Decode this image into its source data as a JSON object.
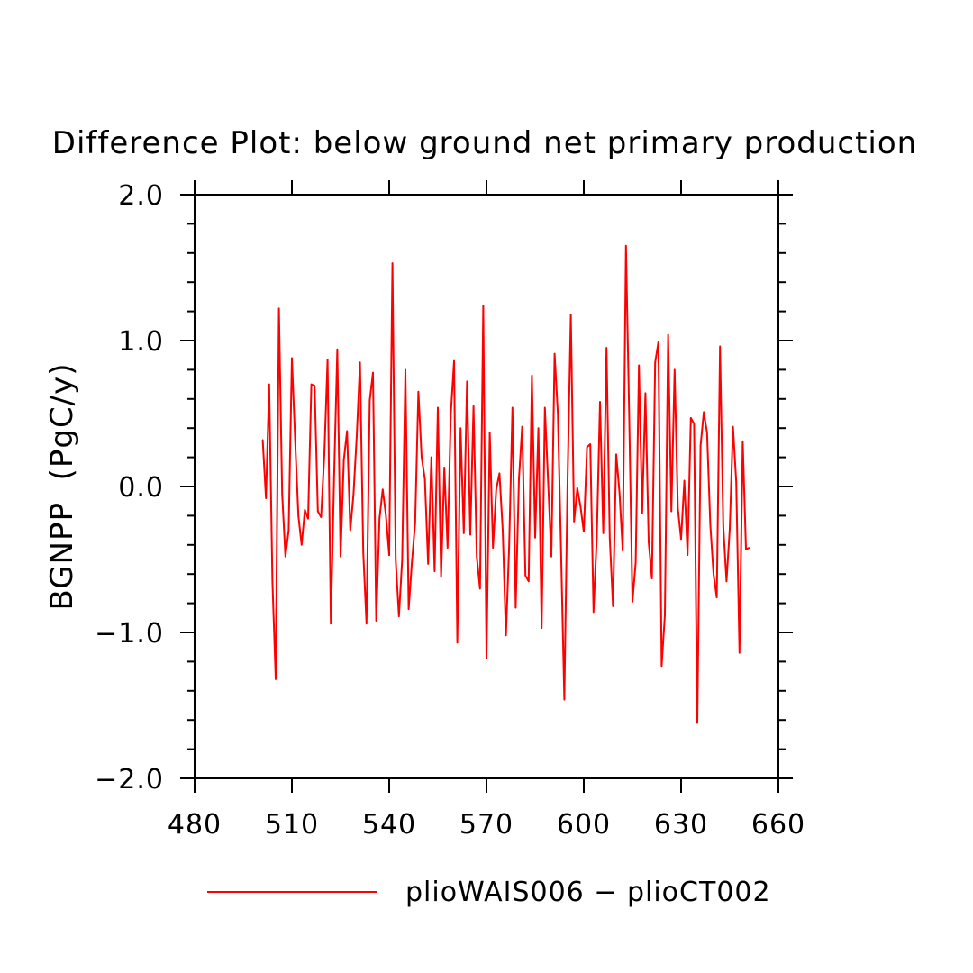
{
  "chart_data": {
    "type": "line",
    "title": "Difference Plot: below ground net primary production",
    "xlabel": "",
    "ylabel": "BGNPP  (PgC/y)",
    "xlim": [
      480,
      660
    ],
    "ylim": [
      -2.0,
      2.0
    ],
    "x_ticks": [
      480,
      510,
      540,
      570,
      600,
      630,
      660
    ],
    "x_tick_labels": [
      "480",
      "510",
      "540",
      "570",
      "600",
      "630",
      "660"
    ],
    "y_ticks": [
      -2.0,
      -1.0,
      0.0,
      1.0,
      2.0
    ],
    "y_tick_labels": [
      "−2.0",
      "−1.0",
      "0.0",
      "1.0",
      "2.0"
    ],
    "grid": false,
    "legend": "bottom",
    "series": [
      {
        "name": "plioWAIS006 − plioCT002",
        "color": "#ff0000",
        "x_start": 501,
        "x_step": 1,
        "values": [
          0.32,
          -0.08,
          0.7,
          -0.65,
          -1.32,
          1.22,
          -0.05,
          -0.48,
          -0.3,
          0.88,
          0.32,
          -0.2,
          -0.4,
          -0.16,
          -0.22,
          0.7,
          0.69,
          -0.17,
          -0.21,
          0.22,
          0.87,
          -0.94,
          0.06,
          0.94,
          -0.48,
          0.18,
          0.38,
          -0.3,
          -0.05,
          0.35,
          0.85,
          -0.45,
          -0.94,
          0.59,
          0.78,
          -0.92,
          -0.22,
          -0.02,
          -0.2,
          -0.47,
          1.53,
          -0.5,
          -0.89,
          -0.5,
          0.8,
          -0.84,
          -0.52,
          -0.25,
          0.65,
          0.2,
          0.05,
          -0.53,
          0.2,
          -0.58,
          0.54,
          -0.62,
          0.13,
          -0.42,
          0.5,
          0.86,
          -1.07,
          0.4,
          -0.32,
          0.72,
          -0.33,
          0.55,
          -0.48,
          -0.7,
          1.24,
          -1.18,
          0.37,
          -0.42,
          -0.02,
          0.09,
          -0.3,
          -1.02,
          -0.4,
          0.54,
          -0.83,
          0.05,
          0.41,
          -0.61,
          -0.65,
          0.76,
          -0.35,
          0.4,
          -0.97,
          0.54,
          0.03,
          -0.48,
          0.91,
          0.5,
          -0.45,
          -1.46,
          0.04,
          1.18,
          -0.24,
          -0.01,
          -0.14,
          -0.31,
          0.27,
          0.29,
          -0.86,
          -0.35,
          0.58,
          -0.32,
          0.95,
          -0.35,
          -0.82,
          0.22,
          -0.04,
          -0.44,
          1.65,
          0.48,
          -0.79,
          -0.52,
          0.83,
          -0.18,
          0.64,
          -0.38,
          -0.63,
          0.85,
          0.99,
          -1.23,
          -0.88,
          1.04,
          -0.17,
          0.8,
          -0.15,
          -0.36,
          0.04,
          -0.47,
          0.47,
          0.43,
          -1.62,
          0.28,
          0.51,
          0.37,
          -0.26,
          -0.6,
          -0.76,
          0.96,
          -0.27,
          -0.65,
          -0.29,
          0.41,
          0.03,
          -1.14,
          0.31,
          -0.43,
          -0.42
        ]
      }
    ]
  }
}
